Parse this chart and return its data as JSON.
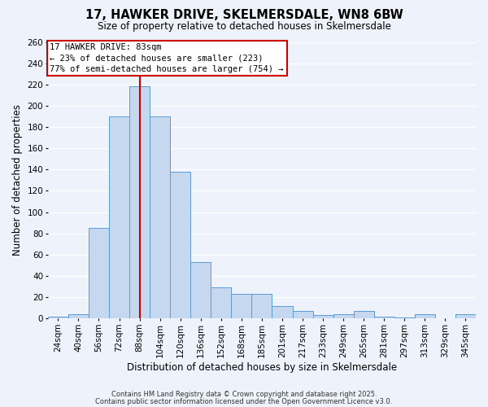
{
  "title1": "17, HAWKER DRIVE, SKELMERSDALE, WN8 6BW",
  "title2": "Size of property relative to detached houses in Skelmersdale",
  "xlabel": "Distribution of detached houses by size in Skelmersdale",
  "ylabel": "Number of detached properties",
  "bar_labels": [
    "24sqm",
    "40sqm",
    "56sqm",
    "72sqm",
    "88sqm",
    "104sqm",
    "120sqm",
    "136sqm",
    "152sqm",
    "168sqm",
    "185sqm",
    "201sqm",
    "217sqm",
    "233sqm",
    "249sqm",
    "265sqm",
    "281sqm",
    "297sqm",
    "313sqm",
    "329sqm",
    "345sqm"
  ],
  "bar_values": [
    2,
    4,
    85,
    190,
    218,
    190,
    138,
    53,
    29,
    23,
    23,
    12,
    7,
    3,
    4,
    7,
    2,
    1,
    4,
    0,
    4
  ],
  "bar_color": "#c5d8f0",
  "bar_edge_color": "#5b9bd5",
  "vline_color": "#cc0000",
  "vline_label": "88sqm",
  "ylim": [
    0,
    260
  ],
  "yticks": [
    0,
    20,
    40,
    60,
    80,
    100,
    120,
    140,
    160,
    180,
    200,
    220,
    240,
    260
  ],
  "annotation_title": "17 HAWKER DRIVE: 83sqm",
  "annotation_line1": "← 23% of detached houses are smaller (223)",
  "annotation_line2": "77% of semi-detached houses are larger (754) →",
  "footer1": "Contains HM Land Registry data © Crown copyright and database right 2025.",
  "footer2": "Contains public sector information licensed under the Open Government Licence v3.0.",
  "bg_color": "#eef3fb",
  "grid_color": "#ffffff",
  "title1_fontsize": 10.5,
  "title2_fontsize": 8.5,
  "xlabel_fontsize": 8.5,
  "ylabel_fontsize": 8.5,
  "tick_fontsize": 7.5,
  "annot_fontsize": 7.5,
  "footer_fontsize": 6.0
}
